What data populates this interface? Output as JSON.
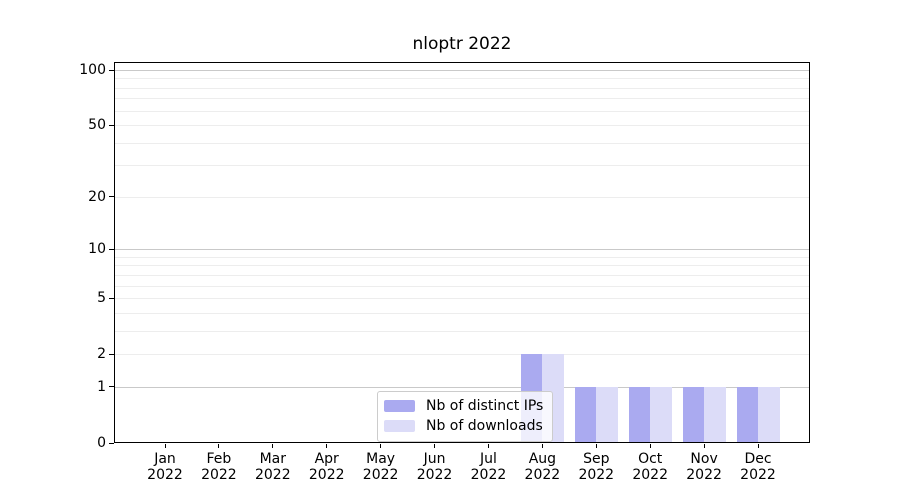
{
  "title": "nloptr 2022",
  "legend": {
    "items": [
      {
        "label": "Nb of distinct IPs",
        "color": "#aaaaf0"
      },
      {
        "label": "Nb of downloads",
        "color": "#dcdcf8"
      }
    ]
  },
  "axes": {
    "y_tick_labels": [
      "0",
      "1",
      "2",
      "5",
      "10",
      "20",
      "50",
      "100"
    ],
    "x_tick_labels": [
      "Jan 2022",
      "Feb 2022",
      "Mar 2022",
      "Apr 2022",
      "May 2022",
      "Jun 2022",
      "Jul 2022",
      "Aug 2022",
      "Sep 2022",
      "Oct 2022",
      "Nov 2022",
      "Dec 2022"
    ]
  },
  "chart_data": {
    "type": "bar",
    "title": "nloptr 2022",
    "categories": [
      "Jan 2022",
      "Feb 2022",
      "Mar 2022",
      "Apr 2022",
      "May 2022",
      "Jun 2022",
      "Jul 2022",
      "Aug 2022",
      "Sep 2022",
      "Oct 2022",
      "Nov 2022",
      "Dec 2022"
    ],
    "series": [
      {
        "name": "Nb of distinct IPs",
        "color": "#aaaaf0",
        "values": [
          0,
          0,
          0,
          0,
          0,
          0,
          0,
          2,
          1,
          1,
          1,
          1
        ]
      },
      {
        "name": "Nb of downloads",
        "color": "#dcdcf8",
        "values": [
          0,
          0,
          0,
          0,
          0,
          0,
          0,
          2,
          1,
          1,
          1,
          1
        ]
      }
    ],
    "xlabel": "",
    "ylabel": "",
    "y_scale": "log10(value+1)",
    "y_ticks": [
      0,
      1,
      2,
      5,
      10,
      20,
      50,
      100
    ],
    "ylim": [
      0,
      105
    ],
    "grid": true,
    "grid_major_color": "#c9c9c9",
    "grid_minor_color": "#ededed",
    "legend_position": "lower center"
  }
}
